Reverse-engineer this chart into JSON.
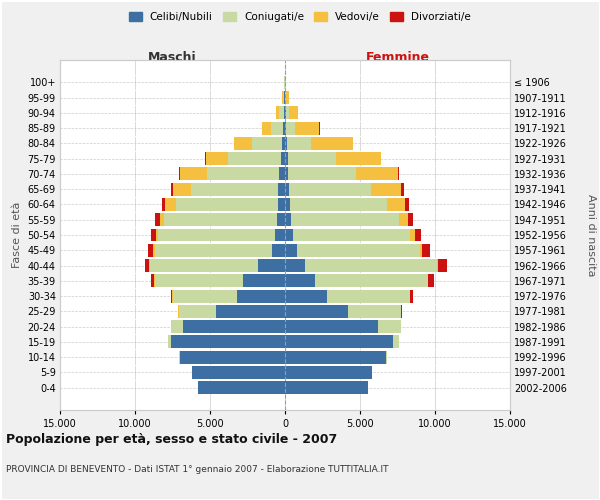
{
  "age_groups": [
    "0-4",
    "5-9",
    "10-14",
    "15-19",
    "20-24",
    "25-29",
    "30-34",
    "35-39",
    "40-44",
    "45-49",
    "50-54",
    "55-59",
    "60-64",
    "65-69",
    "70-74",
    "75-79",
    "80-84",
    "85-89",
    "90-94",
    "95-99",
    "100+"
  ],
  "birth_years": [
    "2002-2006",
    "1997-2001",
    "1992-1996",
    "1987-1991",
    "1982-1986",
    "1977-1981",
    "1972-1976",
    "1967-1971",
    "1962-1966",
    "1957-1961",
    "1952-1956",
    "1947-1951",
    "1942-1946",
    "1937-1941",
    "1932-1936",
    "1927-1931",
    "1922-1926",
    "1917-1921",
    "1912-1916",
    "1907-1911",
    "≤ 1906"
  ],
  "colors": {
    "celibi": "#3e6fa3",
    "coniugati": "#c8d9a2",
    "vedovi": "#f5c040",
    "divorziati": "#cc1111"
  },
  "maschi": {
    "celibi": [
      5800,
      6200,
      7000,
      7600,
      6800,
      4600,
      3200,
      2800,
      1800,
      900,
      650,
      550,
      500,
      450,
      380,
      280,
      170,
      120,
      80,
      50,
      15
    ],
    "coniugati": [
      5,
      10,
      50,
      200,
      800,
      2500,
      4300,
      5900,
      7200,
      7800,
      7800,
      7500,
      6800,
      5800,
      4800,
      3500,
      2000,
      800,
      300,
      80,
      30
    ],
    "vedovi": [
      0,
      0,
      1,
      2,
      5,
      10,
      20,
      30,
      50,
      80,
      150,
      300,
      700,
      1200,
      1800,
      1500,
      1200,
      600,
      200,
      80,
      20
    ],
    "divorziati": [
      0,
      0,
      1,
      5,
      20,
      50,
      100,
      200,
      300,
      350,
      350,
      300,
      200,
      150,
      100,
      50,
      20,
      10,
      5,
      0,
      0
    ]
  },
  "femmine": {
    "celibi": [
      5500,
      5800,
      6700,
      7200,
      6200,
      4200,
      2800,
      2000,
      1300,
      800,
      550,
      400,
      330,
      260,
      210,
      170,
      120,
      90,
      60,
      30,
      15
    ],
    "coniugati": [
      5,
      20,
      100,
      400,
      1500,
      3500,
      5500,
      7500,
      8800,
      8200,
      7800,
      7200,
      6500,
      5500,
      4500,
      3200,
      1600,
      600,
      200,
      60,
      20
    ],
    "vedovi": [
      0,
      0,
      1,
      2,
      5,
      15,
      30,
      50,
      80,
      150,
      300,
      600,
      1200,
      2000,
      2800,
      3000,
      2800,
      1600,
      600,
      200,
      60
    ],
    "divorziati": [
      0,
      0,
      1,
      5,
      30,
      100,
      200,
      350,
      600,
      500,
      400,
      350,
      250,
      150,
      100,
      50,
      20,
      10,
      5,
      0,
      0
    ]
  },
  "xlim": 15000,
  "xticks": [
    -15000,
    -10000,
    -5000,
    0,
    5000,
    10000,
    15000
  ],
  "xtick_labels": [
    "15.000",
    "10.000",
    "5.000",
    "0",
    "5.000",
    "10.000",
    "15.000"
  ],
  "title": "Popolazione per età, sesso e stato civile - 2007",
  "subtitle": "PROVINCIA DI BENEVENTO - Dati ISTAT 1° gennaio 2007 - Elaborazione TUTTITALIA.IT",
  "ylabel_left": "Fasce di età",
  "ylabel_right": "Anni di nascita",
  "label_maschi": "Maschi",
  "label_femmine": "Femmine",
  "legend_labels": [
    "Celibi/Nubili",
    "Coniugati/e",
    "Vedovi/e",
    "Divorziati/e"
  ],
  "bg_color": "#f0f0f0",
  "plot_bg": "#ffffff",
  "grid_color": "#cccccc"
}
